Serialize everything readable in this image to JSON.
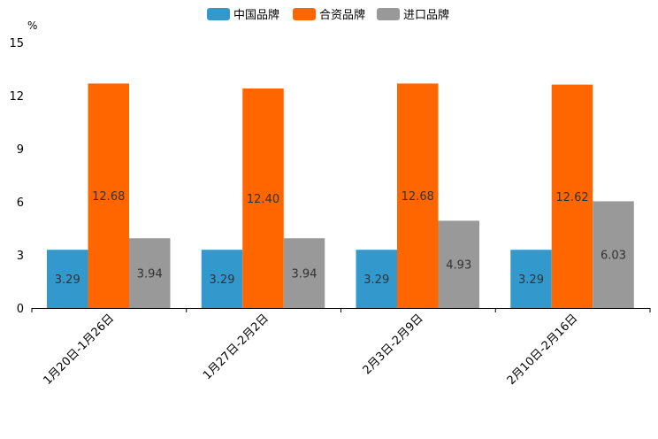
{
  "chart_data": {
    "type": "bar",
    "unit": "%",
    "categories": [
      "1月20日-1月26日",
      "1月27日-2月2日",
      "2月3日-2月9日",
      "2月10日-2月16日"
    ],
    "series": [
      {
        "name": "中国品牌",
        "color": "#3399cc",
        "values": [
          3.29,
          3.29,
          3.29,
          3.29
        ],
        "labels": [
          "3.29",
          "3.29",
          "3.29",
          "3.29"
        ]
      },
      {
        "name": "合资品牌",
        "color": "#ff6600",
        "values": [
          12.68,
          12.4,
          12.68,
          12.62
        ],
        "labels": [
          "12.68",
          "12.40",
          "12.68",
          "12.62"
        ]
      },
      {
        "name": "进口品牌",
        "color": "#999999",
        "values": [
          3.94,
          3.94,
          4.93,
          6.03
        ],
        "labels": [
          "3.94",
          "3.94",
          "4.93",
          "6.03"
        ]
      }
    ],
    "yticks": [
      "0",
      "3",
      "6",
      "9",
      "12",
      "15"
    ],
    "ylim": [
      0,
      15
    ],
    "legend_position": "top-center"
  }
}
